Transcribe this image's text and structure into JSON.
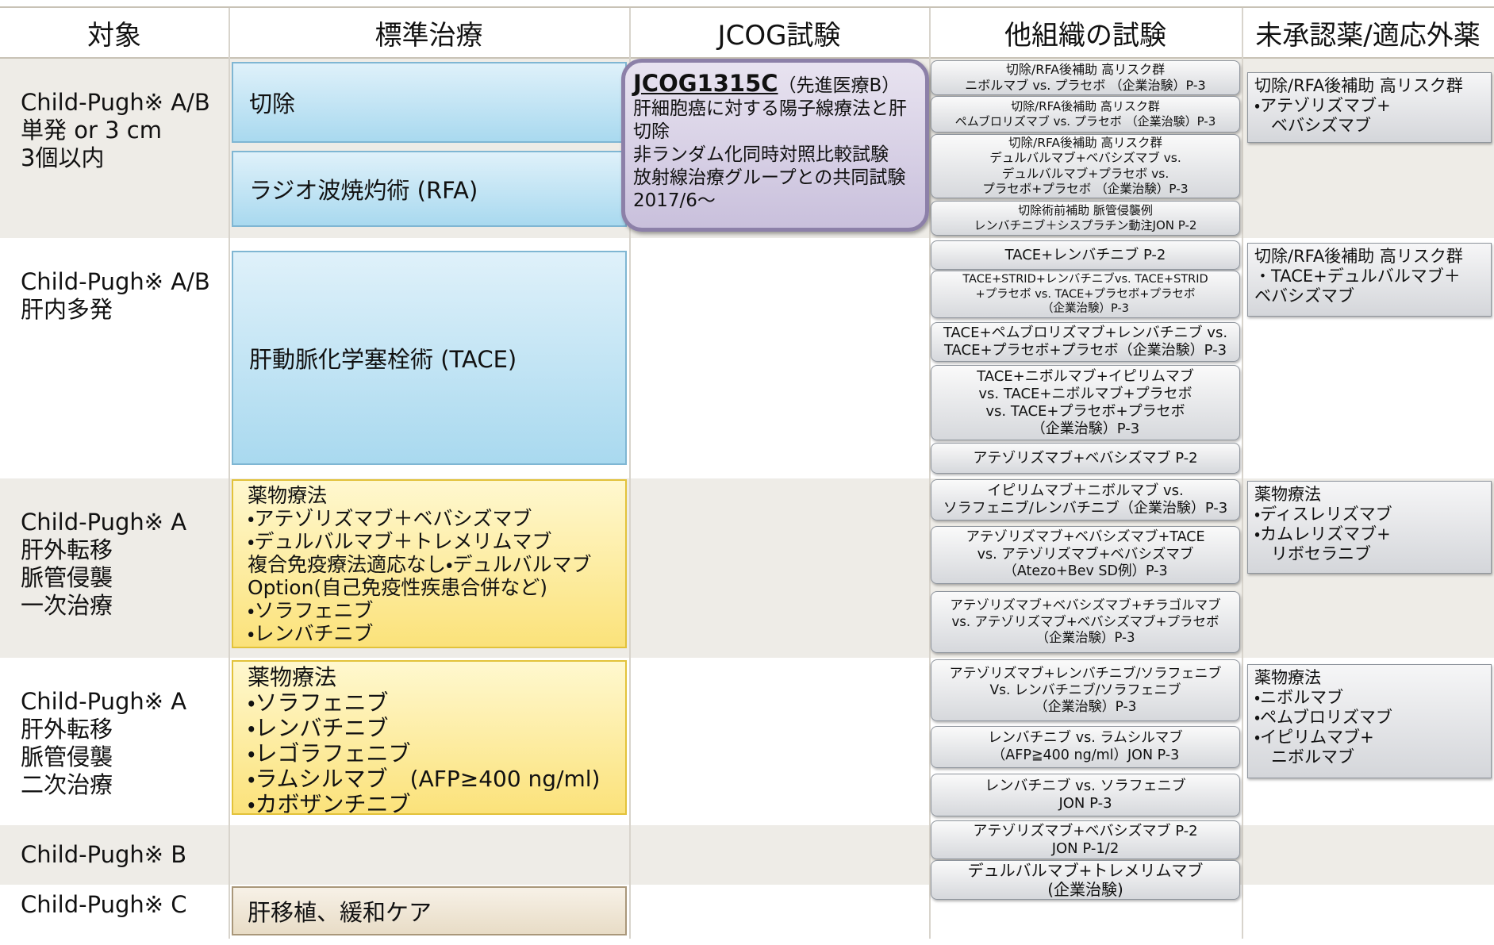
{
  "header": {
    "columns": [
      "対象",
      "標準治療",
      "JCOG試験",
      "他組織の試験",
      "未承認薬/適応外薬"
    ]
  },
  "targets": [
    [
      "Child-Pugh※ A/B",
      "単発 or 3 cm",
      "3個以内"
    ],
    [
      "Child-Pugh※ A/B",
      "肝内多発"
    ],
    [
      "Child-Pugh※ A",
      "肝外転移",
      "脈管侵襲",
      "一次治療"
    ],
    [
      "Child-Pugh※ A",
      "肝外転移",
      "脈管侵襲",
      "二次治療"
    ],
    [
      "Child-Pugh※ B"
    ],
    [
      "Child-Pugh※ C"
    ]
  ],
  "standard_treatments": [
    [
      "切除"
    ],
    [
      "ラジオ波焼灼術 (RFA)"
    ],
    [
      "肝動脈化学塞栓術 (TACE)"
    ],
    [
      "薬物療法",
      "・アテゾリズマブ＋ベバシズマブ",
      "・デュルバルマブ＋トレメリムマブ",
      "複合免疫療法適応なし・デュルバルマブ",
      "Option(自己免疫性疾患合併など)",
      "・ソラフェニブ",
      "・レンバチニブ"
    ],
    [
      "薬物療法",
      "・ソラフェニブ",
      "・レンバチニブ",
      "・レゴラフェニブ",
      "・ラムシルマブ　(AFP≥400 ng/ml)",
      "・カボザンチニブ"
    ],
    [
      "肝移植、緩和ケア"
    ]
  ],
  "jcog": {
    "id": "JCOG1315C",
    "note": "（先進医療B）",
    "lines": [
      "肝細胞癌に対する陽子線療法と肝",
      "切除",
      "非ランダム化同時対照比較試験",
      "放射線治療グループとの共同試験",
      "2017/6～"
    ]
  },
  "other_trials": [
    [
      "切除/RFA後補助 高リスク群",
      "ニボルマブ vs. プラセボ （企業治験）P-3"
    ],
    [
      "切除/RFA後補助 高リスク群",
      "ペムブロリズマブ vs. プラセボ （企業治験）P-3"
    ],
    [
      "切除/RFA後補助 高リスク群",
      "デュルバルマブ+ベバシズマブ vs.",
      "デュルバルマブ+プラセボ vs.",
      "プラセボ+プラセボ （企業治験）P-3"
    ],
    [
      "切除術前補助 脈管侵襲例",
      "レンバチニブ＋シスプラチン動注JON P-2"
    ],
    [
      "TACE+レンバチニブ P-2"
    ],
    [
      "TACE+STRID+レンバチニブvs. TACE+STRID",
      "+プラセボ vs. TACE+プラセボ+プラセボ",
      "（企業治験）P-3"
    ],
    [
      "TACE+ペムブロリズマブ+レンバチニブ vs.",
      "TACE+プラセボ+プラセボ（企業治験）P-3"
    ],
    [
      "TACE+ニボルマブ+イピリムマブ",
      "vs. TACE+ニボルマブ+プラセボ",
      "vs. TACE+プラセボ+プラセボ",
      "（企業治験）P-3"
    ],
    [
      "アテゾリズマブ+ベバシズマブ P-2"
    ],
    [
      "イピリムマブ＋ニボルマブ vs.",
      "ソラフェニブ/レンバチニブ（企業治験）P-3"
    ],
    [
      "アテゾリズマブ+ベバシズマブ+TACE",
      "vs. アテゾリズマブ+ベバシズマブ",
      "（Atezo+Bev SD例）P-3"
    ],
    [
      "アテゾリズマブ+ベバシズマブ+チラゴルマブ",
      "vs. アテゾリズマブ+ベバシズマブ+プラセボ",
      "（企業治験）P-3"
    ],
    [
      "アテゾリズマブ+レンバチニブ/ソラフェニブ",
      "Vs. レンバチニブ/ソラフェニブ",
      "（企業治験）P-3"
    ],
    [
      "レンバチニブ vs. ラムシルマブ",
      "（AFP≧400 ng/ml）JON P-3"
    ],
    [
      "レンバチニブ vs. ソラフェニブ",
      "JON P-3"
    ],
    [
      "アテゾリズマブ+ベバシズマブ P-2",
      "JON P-1/2"
    ],
    [
      "デュルバルマブ+トレメリムマブ",
      "(企業治験)"
    ]
  ],
  "unapproved": [
    [
      "切除/RFA後補助 高リスク群",
      "・アテゾリズマブ+",
      "　ベバシズマブ"
    ],
    [
      "切除/RFA後補助 高リスク群",
      "・TACE+デュルバルマブ＋",
      "ベバシズマブ"
    ],
    [
      "薬物療法",
      "・ディスレリズマブ",
      "・カムレリズマブ+",
      "　リボセラニブ"
    ],
    [
      "薬物療法",
      "・ニボルマブ",
      "・ペムブロリズマブ",
      "・イピリムマブ+",
      "　ニボルマブ"
    ]
  ]
}
